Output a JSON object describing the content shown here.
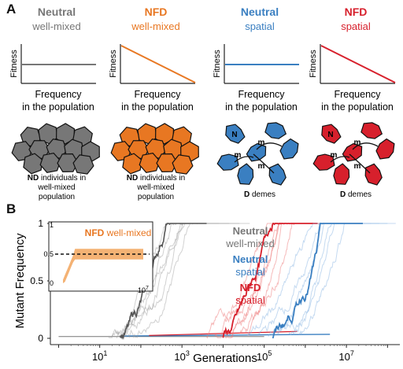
{
  "panel_a": {
    "label": "A",
    "columns": [
      {
        "title": "Neutral",
        "subtitle": "well-mixed",
        "color": "#777777",
        "curve": "flat",
        "caption_bold": "ND",
        "caption_rest": " individuals in",
        "caption_line2": "well-mixed",
        "caption_line3": "population"
      },
      {
        "title": "NFD",
        "subtitle": "well-mixed",
        "color": "#e87722",
        "curve": "declining",
        "caption_bold": "ND",
        "caption_rest": " individuals in",
        "caption_line2": "well-mixed",
        "caption_line3": "population"
      },
      {
        "title": "Neutral",
        "subtitle": "spatial",
        "color": "#3a7fc1",
        "curve": "flat",
        "caption_bold": "D",
        "caption_rest": " demes",
        "caption_line2": "",
        "caption_line3": ""
      },
      {
        "title": "NFD",
        "subtitle": "spatial",
        "color": "#d7202c",
        "curve": "declining",
        "caption_bold": "D",
        "caption_rest": " demes",
        "caption_line2": "",
        "caption_line3": ""
      }
    ],
    "y_axis_label": "Fitness",
    "x_axis_label_line1": "Frequency",
    "x_axis_label_line2": "in the population",
    "deme_node_label": "N",
    "migration_label": "m"
  },
  "panel_b": {
    "label": "B",
    "y_axis_label": "Mutant Frequency",
    "x_axis_label": "Generations",
    "y_ticks": [
      "0",
      "0.5",
      "1"
    ],
    "x_ticks": [
      {
        "base": "10",
        "exp": "1"
      },
      {
        "base": "10",
        "exp": "3"
      },
      {
        "base": "10",
        "exp": "5"
      },
      {
        "base": "10",
        "exp": "7"
      }
    ],
    "legend": [
      {
        "title": "Neutral",
        "subtitle": "well-mixed",
        "color": "#777777"
      },
      {
        "title": "Neutral",
        "subtitle": "spatial",
        "color": "#3a7fc1"
      },
      {
        "title": "NFD",
        "subtitle": "spatial",
        "color": "#d7202c"
      }
    ],
    "inset": {
      "label_bold": "NFD",
      "label_rest": " well-mixed",
      "color": "#e87722",
      "y_ticks": [
        "0",
        "0.5",
        "1"
      ],
      "x_tick": {
        "base": "10",
        "exp": "7"
      }
    }
  }
}
